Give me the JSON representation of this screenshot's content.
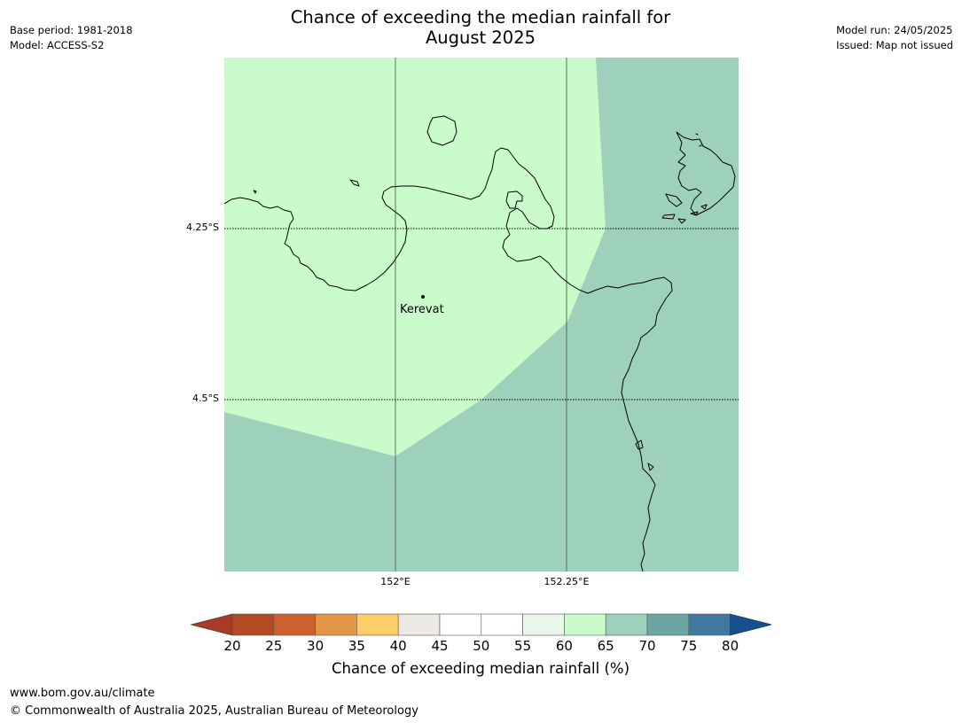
{
  "header": {
    "base_period": "Base period: 1981-2018",
    "model": "Model: ACCESS-S2",
    "model_run": "Model run: 24/05/2025",
    "issued": "Issued: Map not issued",
    "title_line1": "Chance of exceeding the median rainfall for",
    "title_line2": "August 2025"
  },
  "map": {
    "lat_labels": [
      "4.25°S",
      "4.5°S"
    ],
    "lon_labels": [
      "152°E",
      "152.25°E"
    ],
    "place_label": "Kerevat",
    "region_colors": {
      "band_60_65": "#c9fcca",
      "band_65_70": "#9ed1bc",
      "coastline": "#000000"
    }
  },
  "colorbar": {
    "ticks": [
      "20",
      "25",
      "30",
      "35",
      "40",
      "45",
      "50",
      "55",
      "60",
      "65",
      "70",
      "75",
      "80"
    ],
    "colors": [
      "#a73b23",
      "#b24a24",
      "#cc6130",
      "#e29646",
      "#ffcd68",
      "#ece9e4",
      "#ffffff",
      "#ffffff",
      "#e9f7ea",
      "#c9fcca",
      "#9ed1bc",
      "#6da5a5",
      "#3f7a9e",
      "#164f8b"
    ],
    "title": "Chance of exceeding median rainfall (%)"
  },
  "footer": {
    "url": "www.bom.gov.au/climate",
    "copyright": "© Commonwealth of Australia 2025, Australian Bureau of Meteorology"
  }
}
